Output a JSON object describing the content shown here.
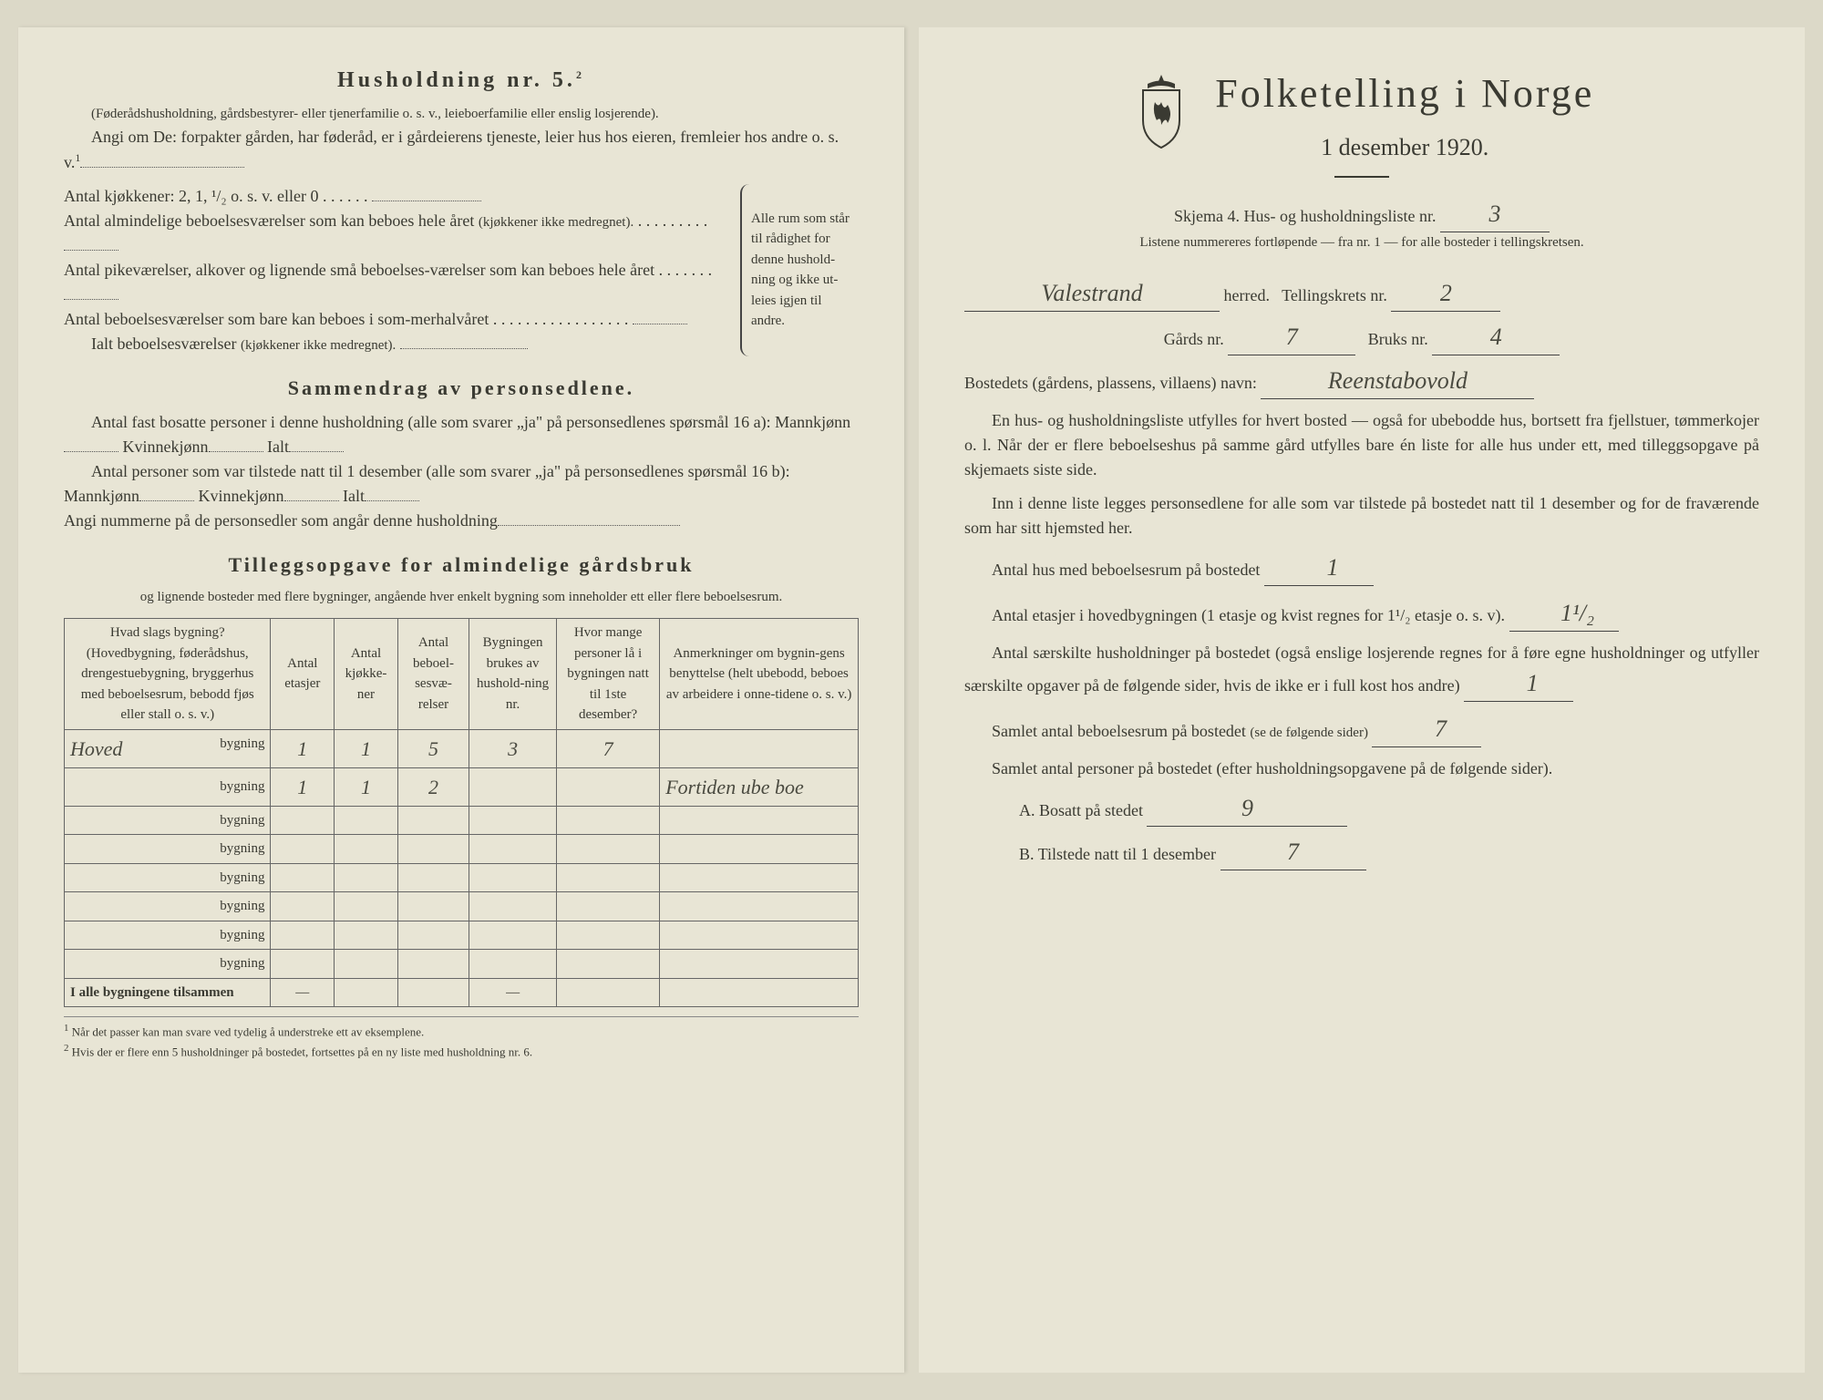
{
  "left": {
    "heading": "Husholdning nr. 5.",
    "heading_sup": "2",
    "intro1": "(Føderådshusholdning, gårdsbestyrer- eller tjenerfamilie o. s. v., leieboerfamilie eller enslig losjerende).",
    "intro2": "Angi om De: forpakter gården, har føderåd, er i gårdeierens tjeneste, leier hus hos eieren, fremleier hos andre o. s. v.",
    "intro2_sup": "1",
    "kitchens_label": "Antal kjøkkener: 2, 1, ¹/₂ o. s. v. eller 0",
    "rooms1": "Antal almindelige beboelsesværelser som kan beboes hele året",
    "rooms1_note": "(kjøkkener ikke medregnet).",
    "rooms2": "Antal pikeværelser, alkover og lignende små beboelses-værelser som kan beboes hele året",
    "rooms3": "Antal beboelsesværelser som bare kan beboes i som-merhalvåret",
    "rooms_total": "Ialt beboelsesværelser",
    "rooms_total_note": "(kjøkkener ikke medregnet).",
    "brace_text": "Alle rum som står til rådighet for denne hushold-ning og ikke ut-leies igjen til andre.",
    "summary_heading": "Sammendrag av personsedlene.",
    "summary1": "Antal fast bosatte personer i denne husholdning (alle som svarer „ja\" på personsedlenes spørsmål 16 a): Mannkjønn",
    "kvinne": "Kvinnekjønn",
    "ialt": "Ialt",
    "summary2": "Antal personer som var tilstede natt til 1 desember (alle som svarer „ja\" på personsedlenes spørsmål 16 b): Mannkjønn",
    "nummer": "Angi nummerne på de personsedler som angår denne husholdning",
    "tillegg_heading": "Tilleggsopgave for almindelige gårdsbruk",
    "tillegg_sub": "og lignende bosteder med flere bygninger, angående hver enkelt bygning som inneholder ett eller flere beboelsesrum.",
    "table": {
      "headers": [
        "Hvad slags bygning?\n(Hovedbygning, føderådshus, drengestuebygning, bryggerhus med beboelsesrum, bebodd fjøs eller stall o. s. v.)",
        "Antal etasjer",
        "Antal kjøkke-ner",
        "Antal beboel-sesvæ-relser",
        "Bygningen brukes av hushold-ning nr.",
        "Hvor mange personer lå i bygningen natt til 1ste desember?",
        "Anmerkninger om bygnin-gens benyttelse (helt ubebodd, beboes av arbeidere i onne-tidene o. s. v.)"
      ],
      "bygning_label": "bygning",
      "rows": [
        {
          "name": "Hoved",
          "c1": "1",
          "c2": "1",
          "c3": "5",
          "c4": "3",
          "c5": "7",
          "c6": ""
        },
        {
          "name": "",
          "c1": "1",
          "c2": "1",
          "c3": "2",
          "c4": "",
          "c5": "",
          "c6": "Fortiden ube boe"
        },
        {
          "name": "",
          "c1": "",
          "c2": "",
          "c3": "",
          "c4": "",
          "c5": "",
          "c6": ""
        },
        {
          "name": "",
          "c1": "",
          "c2": "",
          "c3": "",
          "c4": "",
          "c5": "",
          "c6": ""
        },
        {
          "name": "",
          "c1": "",
          "c2": "",
          "c3": "",
          "c4": "",
          "c5": "",
          "c6": ""
        },
        {
          "name": "",
          "c1": "",
          "c2": "",
          "c3": "",
          "c4": "",
          "c5": "",
          "c6": ""
        },
        {
          "name": "",
          "c1": "",
          "c2": "",
          "c3": "",
          "c4": "",
          "c5": "",
          "c6": ""
        },
        {
          "name": "",
          "c1": "",
          "c2": "",
          "c3": "",
          "c4": "",
          "c5": "",
          "c6": ""
        }
      ],
      "total_row": "I alle bygningene tilsammen",
      "dash": "—"
    },
    "footnote1": "Når det passer kan man svare ved tydelig å understreke ett av eksemplene.",
    "footnote2": "Hvis der er flere enn 5 husholdninger på bostedet, fortsettes på en ny liste med husholdning nr. 6."
  },
  "right": {
    "title": "Folketelling i Norge",
    "date": "1 desember 1920.",
    "skjema": "Skjema 4.  Hus- og husholdningsliste nr.",
    "skjema_val": "3",
    "liste_note": "Listene nummereres fortløpende — fra nr. 1 — for alle bosteder i tellingskretsen.",
    "herred": "herred.",
    "herred_val": "Valestrand",
    "tellingskrets": "Tellingskrets nr.",
    "tellingskrets_val": "2",
    "gards": "Gårds nr.",
    "gards_val": "7",
    "bruks": "Bruks nr.",
    "bruks_val": "4",
    "bosted": "Bostedets (gårdens, plassens, villaens) navn:",
    "bosted_val": "Reenstabovold",
    "para1": "En hus- og husholdningsliste utfylles for hvert bosted — også for ubebodde hus, bortsett fra fjellstuer, tømmerkojer o. l.  Når der er flere beboelseshus på samme gård utfylles bare én liste for alle hus under ett, med tilleggsopgave på skjemaets siste side.",
    "para2": "Inn i denne liste legges personsedlene for alle som var tilstede på bostedet natt til 1 desember og for de fraværende som har sitt hjemsted her.",
    "q1": "Antal hus med beboelsesrum på bostedet",
    "q1_val": "1",
    "q2a": "Antal etasjer i hovedbygningen (1 etasje og kvist regnes for 1¹/₂ etasje o. s. v).",
    "q2_val": "1¹/₂",
    "q3": "Antal særskilte husholdninger på bostedet (også enslige losjerende regnes for å føre egne husholdninger og utfyller særskilte opgaver på de følgende sider, hvis de ikke er i full kost hos andre)",
    "q3_val": "1",
    "q4": "Samlet antal beboelsesrum på bostedet",
    "q4_note": "(se de følgende sider)",
    "q4_val": "7",
    "q5": "Samlet antal personer på bostedet (efter husholdningsopgavene på de følgende sider).",
    "qA": "A.  Bosatt på stedet",
    "qA_val": "9",
    "qB": "B.  Tilstede natt til 1 desember",
    "qB_val": "7"
  },
  "colors": {
    "paper": "#e8e5d5",
    "ink": "#3a3a32",
    "handwriting": "#4a4a40"
  }
}
